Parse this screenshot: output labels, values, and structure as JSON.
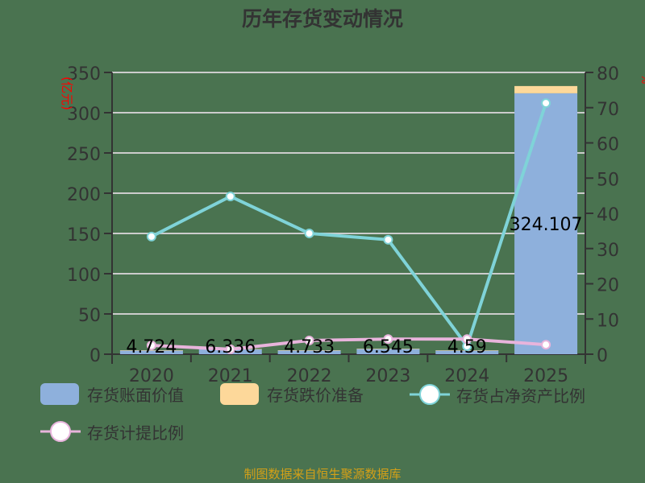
{
  "title": "历年存货变动情况",
  "footer": "制图数据来自恒生聚源数据库",
  "chart_data": {
    "type": "bar+line",
    "title": "历年存货变动情况",
    "categories": [
      "2020",
      "2021",
      "2022",
      "2023",
      "2024",
      "2025"
    ],
    "left_axis": {
      "label": "(亿元)",
      "min": 0,
      "max": 350,
      "ticks": [
        0,
        50,
        100,
        150,
        200,
        250,
        300,
        350
      ]
    },
    "right_axis": {
      "label": "%",
      "min": 0,
      "max": 80,
      "ticks": [
        0,
        10,
        20,
        30,
        40,
        50,
        60,
        70,
        80
      ]
    },
    "grid": true,
    "legend_position": "bottom",
    "series": [
      {
        "name": "存货账面价值",
        "type": "bar",
        "stack": "inv",
        "axis": "left",
        "color": "#8eb0dc",
        "values": [
          4.724,
          6.336,
          4.733,
          6.545,
          4.59,
          324.107
        ],
        "labels": [
          "4.724",
          "6.336",
          "4.733",
          "6.545",
          "4.59",
          "324.107"
        ]
      },
      {
        "name": "存货跌价准备",
        "type": "bar",
        "stack": "inv",
        "axis": "left",
        "color": "#fdd89a",
        "values": [
          0.12,
          0.09,
          0.19,
          0.29,
          0.2,
          9.0
        ]
      },
      {
        "name": "存货占净资产比例",
        "type": "line",
        "axis": "right",
        "color": "#7fd3d8",
        "values": [
          33.4,
          44.8,
          34.3,
          32.5,
          2.3,
          71.3
        ]
      },
      {
        "name": "存货计提比例",
        "type": "line",
        "axis": "right",
        "color": "#e8b4dc",
        "values": [
          2.5,
          1.4,
          3.9,
          4.3,
          4.3,
          2.7
        ]
      }
    ]
  }
}
